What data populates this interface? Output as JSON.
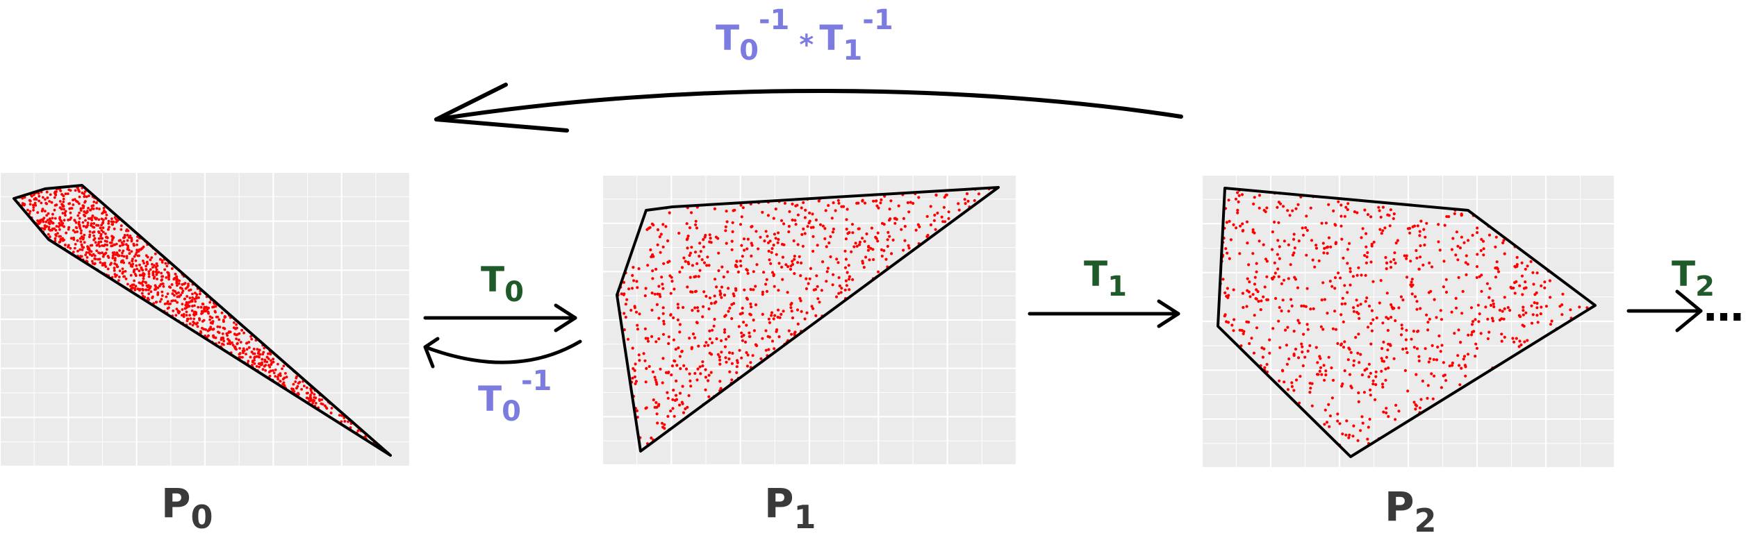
{
  "colors": {
    "panel": "#ebebeb",
    "grid": "#ffffff",
    "points": "#ff0000",
    "polygon_stroke": "#000000",
    "forward_label": "#1f5a2a",
    "inverse_label": "#7b7be0",
    "panel_label": "#3a3a3a"
  },
  "panels": [
    {
      "label_main": "P",
      "label_sub": "0",
      "point_count": 1400
    },
    {
      "label_main": "P",
      "label_sub": "1",
      "point_count": 750
    },
    {
      "label_main": "P",
      "label_sub": "2",
      "point_count": 750
    }
  ],
  "arrows": {
    "t0": {
      "main": "T",
      "sub": "0"
    },
    "t0_inv": {
      "main": "T",
      "sub": "0",
      "sup": "-1"
    },
    "t1": {
      "main": "T",
      "sub": "1"
    },
    "t2": {
      "main": "T",
      "sub": "2",
      "ellipsis": "…"
    },
    "composite_inverse": {
      "a_main": "T",
      "a_sub": "0",
      "a_sup": "-1",
      "op": "*",
      "b_main": "T",
      "b_sub": "1",
      "b_sup": "-1"
    }
  }
}
